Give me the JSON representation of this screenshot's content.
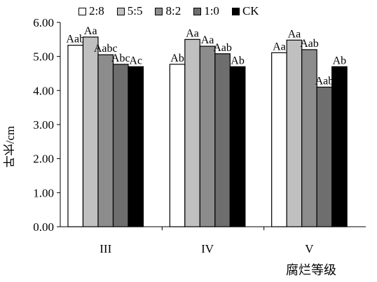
{
  "chart_data": {
    "type": "bar",
    "categories": [
      "III",
      "IV",
      "V"
    ],
    "series": [
      {
        "name": "2:8",
        "color": "#ffffff",
        "values": [
          5.33,
          4.77,
          5.11
        ],
        "labels": [
          "Aab",
          "Ab",
          "Aa"
        ]
      },
      {
        "name": "5:5",
        "color": "#c0c0c0",
        "values": [
          5.57,
          5.5,
          5.48
        ],
        "labels": [
          "Aa",
          "Aa",
          "Aa"
        ]
      },
      {
        "name": "8:2",
        "color": "#8c8c8c",
        "values": [
          5.05,
          5.3,
          5.2
        ],
        "labels": [
          "Aabc",
          "Aa",
          "Aab"
        ]
      },
      {
        "name": "1:0",
        "color": "#6e6e6e",
        "values": [
          4.77,
          5.08,
          4.1
        ],
        "labels": [
          "Abc",
          "Aab",
          "Aab"
        ]
      },
      {
        "name": "CK",
        "color": "#000000",
        "values": [
          4.7,
          4.7,
          4.7
        ],
        "labels": [
          "Ac",
          "Ab",
          "Ab"
        ]
      }
    ],
    "ylim": [
      0,
      6
    ],
    "yticks": [
      "0.00",
      "1.00",
      "2.00",
      "3.00",
      "4.00",
      "5.00",
      "6.00"
    ],
    "ylabel": "叶长/cm",
    "xlabel": "腐烂等级",
    "legend_position": "top",
    "grid": false
  }
}
